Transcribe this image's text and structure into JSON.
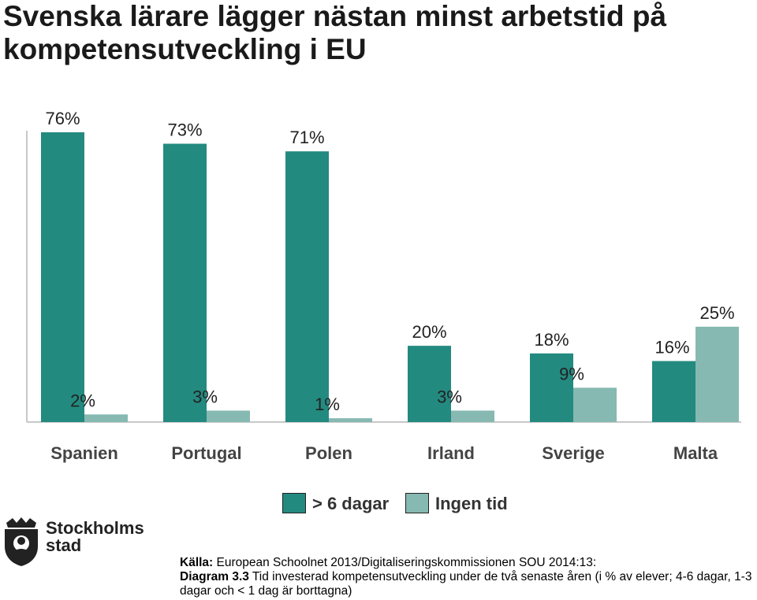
{
  "title": "Svenska lärare lägger nästan minst arbetstid på kompetensutveckling i EU",
  "chart_data": {
    "type": "bar",
    "categories": [
      "Spanien",
      "Portugal",
      "Polen",
      "Irland",
      "Sverige",
      "Malta"
    ],
    "series": [
      {
        "name": "> 6 dagar",
        "values": [
          76,
          73,
          71,
          20,
          18,
          16
        ],
        "color": "#238A80"
      },
      {
        "name": "Ingen tid",
        "values": [
          2,
          3,
          1,
          3,
          9,
          25
        ],
        "color": "#86B9B1"
      }
    ],
    "data_labels": [
      [
        "76%",
        "73%",
        "71%",
        "20%",
        "18%",
        "16%"
      ],
      [
        "2%",
        "3%",
        "1%",
        "3%",
        "9%",
        "25%"
      ]
    ],
    "ylim": [
      0,
      76
    ],
    "grid": false,
    "legend_position": "bottom"
  },
  "legend": [
    {
      "label": "> 6 dagar",
      "color": "#238A80"
    },
    {
      "label": "Ingen tid",
      "color": "#86B9B1"
    }
  ],
  "logo": {
    "line1": "Stockholms",
    "line2": "stad",
    "icon": "stockholm-crest-icon"
  },
  "source": {
    "label1": "Källa:",
    "text1": " European Schoolnet 2013/Digitaliseringskommissionen SOU 2014:13:",
    "label2": "Diagram 3.3",
    "text2": "  Tid investerad   kompetensutveckling under de två senaste åren (i % av elever; 4-6 dagar, 1-3 dagar  och < 1 dag är borttagna)"
  }
}
